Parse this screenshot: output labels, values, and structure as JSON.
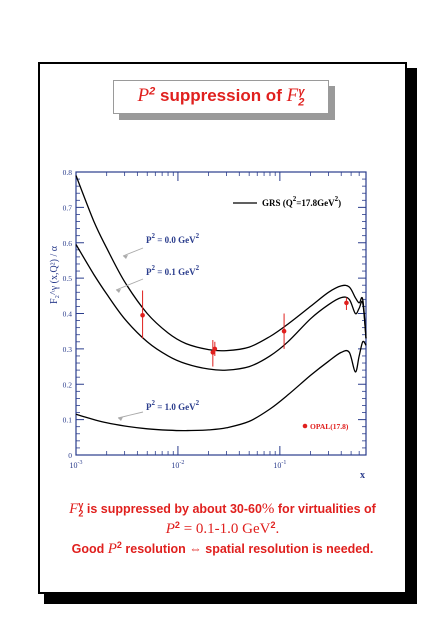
{
  "title": {
    "prefix": "P",
    "prefix_sup": "2",
    "middle": " suppression of ",
    "symbol": "F",
    "symbol_sub": "2",
    "symbol_sup": "γ"
  },
  "caption": {
    "line1_symbol": "F",
    "line1_sub": "2",
    "line1_sup": "γ",
    "line1_text_a": " is suppressed by about 30-60",
    "line1_percent": "%",
    "line1_text_b": " for virtualities of",
    "line2_var": "P",
    "line2_sup": "2",
    "line2_eq": " = 0.1-1.0 GeV",
    "line2_unit_sup": "2",
    "line2_end": ".",
    "line3_a": "Good ",
    "line3_var": "P",
    "line3_sup": "2",
    "line3_b": " resolution ⇔ spatial resolution is needed."
  },
  "colors": {
    "accent_red": "#e0201e",
    "axis_blue": "#2a3c8c",
    "curve": "#000000"
  },
  "chart_data": {
    "type": "line",
    "x_scale": "log",
    "xlim": [
      0.001,
      0.7
    ],
    "ylim": [
      0,
      0.8
    ],
    "xlabel": "x",
    "ylabel": "F₂^γ (x,Q²) / α",
    "x_ticks": [
      {
        "value": 0.001,
        "base": "10",
        "exp": "-3"
      },
      {
        "value": 0.01,
        "base": "10",
        "exp": "-2"
      },
      {
        "value": 0.1,
        "base": "10",
        "exp": "-1"
      }
    ],
    "y_ticks": [
      "0",
      "0.1",
      "0.2",
      "0.3",
      "0.4",
      "0.5",
      "0.6",
      "0.7",
      "0.8"
    ],
    "legend": {
      "label": "GRS (Q²=17.8GeV²)",
      "position": "top-right"
    },
    "series": [
      {
        "label": "P² = 0.0 GeV²",
        "x": [
          0.001,
          0.0015,
          0.002,
          0.003,
          0.005,
          0.008,
          0.012,
          0.02,
          0.03,
          0.05,
          0.08,
          0.12,
          0.2,
          0.3,
          0.4,
          0.48,
          0.55,
          0.6,
          0.65,
          0.7
        ],
        "y": [
          0.79,
          0.66,
          0.585,
          0.49,
          0.4,
          0.345,
          0.315,
          0.298,
          0.295,
          0.305,
          0.335,
          0.37,
          0.42,
          0.46,
          0.478,
          0.475,
          0.445,
          0.43,
          0.44,
          0.33
        ]
      },
      {
        "label": "P² = 0.1 GeV²",
        "x": [
          0.001,
          0.0015,
          0.002,
          0.003,
          0.005,
          0.008,
          0.012,
          0.02,
          0.03,
          0.05,
          0.08,
          0.12,
          0.2,
          0.3,
          0.4,
          0.48,
          0.55,
          0.6,
          0.65,
          0.7
        ],
        "y": [
          0.595,
          0.51,
          0.455,
          0.385,
          0.32,
          0.28,
          0.258,
          0.243,
          0.24,
          0.25,
          0.28,
          0.32,
          0.385,
          0.425,
          0.445,
          0.44,
          0.4,
          0.415,
          0.43,
          0.33
        ]
      },
      {
        "label": "P² = 1.0 GeV²",
        "x": [
          0.001,
          0.0015,
          0.002,
          0.003,
          0.005,
          0.008,
          0.012,
          0.02,
          0.03,
          0.05,
          0.08,
          0.12,
          0.2,
          0.3,
          0.4,
          0.48,
          0.55,
          0.6,
          0.65,
          0.7
        ],
        "y": [
          0.115,
          0.1,
          0.091,
          0.082,
          0.074,
          0.07,
          0.069,
          0.071,
          0.077,
          0.095,
          0.13,
          0.17,
          0.225,
          0.265,
          0.29,
          0.29,
          0.235,
          0.28,
          0.32,
          0.31
        ]
      }
    ],
    "data_points": {
      "label": "OPAL(17.8)",
      "points": [
        {
          "x": 0.0045,
          "y": 0.395,
          "y_low": 0.33,
          "y_high": 0.465
        },
        {
          "x": 0.022,
          "y": 0.29,
          "y_low": 0.25,
          "y_high": 0.325
        },
        {
          "x": 0.022,
          "y": 0.3,
          "y_low": 0.28,
          "y_high": 0.32
        },
        {
          "x": 0.11,
          "y": 0.35,
          "y_low": 0.3,
          "y_high": 0.4
        },
        {
          "x": 0.45,
          "y": 0.43,
          "y_low": 0.41,
          "y_high": 0.445
        }
      ]
    }
  }
}
